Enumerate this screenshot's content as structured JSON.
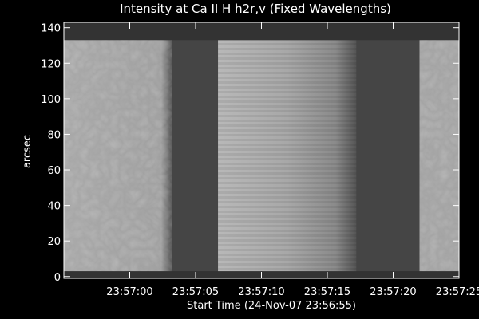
{
  "chart_data": {
    "type": "image",
    "title": "Intensity at Ca II H h2r,v (Fixed Wavelengths)",
    "xlabel": "Start Time (24-Nov-07 23:56:55)",
    "ylabel": "arcsec",
    "xlim": [
      0,
      30
    ],
    "ylim": [
      -1,
      143
    ],
    "xticks": [
      {
        "value": 5,
        "label": "23:57:00"
      },
      {
        "value": 10,
        "label": "23:57:05"
      },
      {
        "value": 15,
        "label": "23:57:10"
      },
      {
        "value": 20,
        "label": "23:57:15"
      },
      {
        "value": 25,
        "label": "23:57:20"
      },
      {
        "value": 30,
        "label": "23:57:25"
      }
    ],
    "yticks": [
      0,
      20,
      40,
      60,
      80,
      100,
      120,
      140
    ],
    "image_ylim": [
      3,
      133
    ],
    "segments": [
      {
        "start": 0,
        "end": 8.2
      },
      {
        "start": 11.7,
        "end": 22.2
      },
      {
        "start": 27.0,
        "end": 30
      }
    ]
  }
}
